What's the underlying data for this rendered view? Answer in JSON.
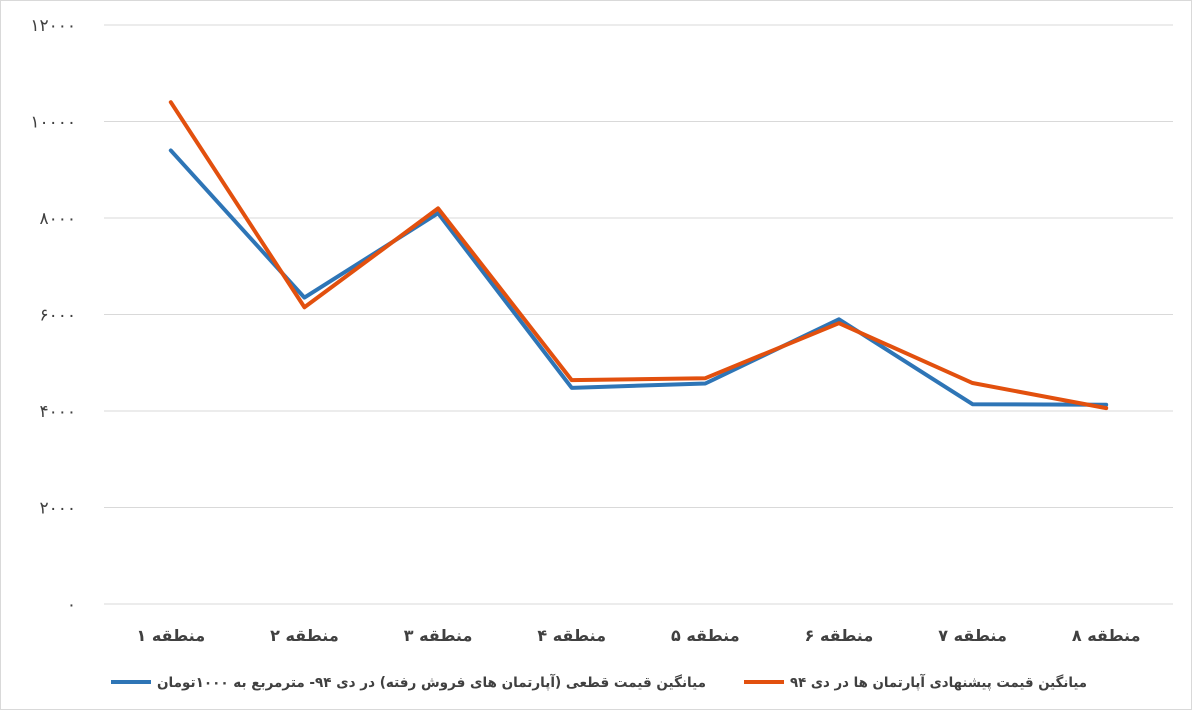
{
  "chart_data": {
    "type": "line",
    "y_ticks": [
      "۰",
      "۲۰۰۰",
      "۴۰۰۰",
      "۶۰۰۰",
      "۸۰۰۰",
      "۱۰۰۰۰",
      "۱۲۰۰۰"
    ],
    "y_tick_values": [
      0,
      2000,
      4000,
      6000,
      8000,
      10000,
      12000
    ],
    "ylim": [
      0,
      12000
    ],
    "grid": true,
    "legend_position": "bottom",
    "categories": [
      "منطقه ۱",
      "منطقه ۲",
      "منطقه ۳",
      "منطقه ۴",
      "منطقه ۵",
      "منطقه ۶",
      "منطقه ۷",
      "منطقه ۸"
    ],
    "series": [
      {
        "name": "میانگین قیمت قطعی (آپارتمان های فروش رفته) در دی ۹۴- مترمربع به ۱۰۰۰تومان",
        "color": "#2e75b6",
        "values": [
          9400,
          6350,
          8100,
          4480,
          4570,
          5900,
          4140,
          4130
        ]
      },
      {
        "name": "میانگین قیمت پیشنهادی آپارتمان ها در دی ۹۴",
        "color": "#e2500e",
        "values": [
          10400,
          6150,
          8200,
          4640,
          4680,
          5820,
          4580,
          4060
        ]
      }
    ]
  }
}
